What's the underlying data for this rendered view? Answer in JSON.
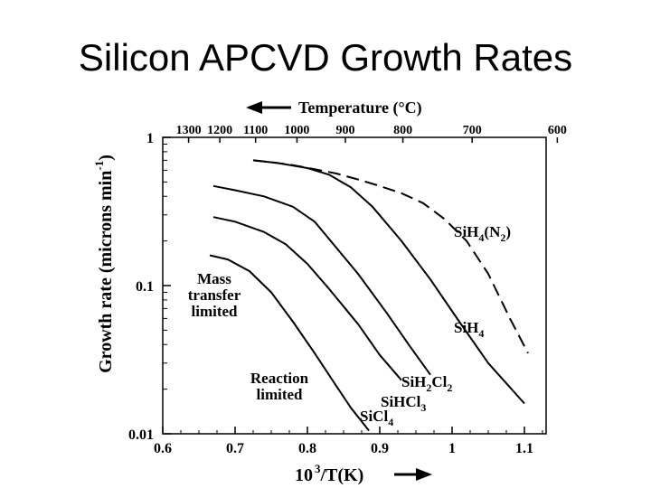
{
  "slide": {
    "title": "Silicon APCVD Growth Rates"
  },
  "chart_data": {
    "type": "line",
    "x_axis": {
      "label_base": "10",
      "label_exp": "3",
      "label_rest": "/T(K)",
      "range": [
        0.6,
        1.13
      ],
      "ticks": [
        0.6,
        0.7,
        0.8,
        0.9,
        1,
        1.1
      ],
      "tick_labels": [
        "0.6",
        "0.7",
        "0.8",
        "0.9",
        "1",
        "1.1"
      ]
    },
    "y_axis": {
      "label_main": "Growth rate (microns min",
      "label_exp": "-1",
      "label_close": ")",
      "scale": "log",
      "range": [
        0.01,
        1
      ],
      "ticks": [
        0.01,
        0.1,
        1
      ],
      "tick_labels": [
        "0.01",
        "0.1",
        "1"
      ]
    },
    "top_axis": {
      "label": "Temperature (°C)",
      "arrow": "left",
      "ticks_c": [
        1300,
        1200,
        1100,
        1000,
        900,
        800,
        700,
        600
      ],
      "tick_labels": [
        "1300",
        "1200",
        "1100",
        "1000",
        "900",
        "800",
        "700",
        "600"
      ]
    },
    "series": [
      {
        "name": "SiH4(N2)",
        "name_parts": [
          "SiH",
          "4",
          "(N",
          "2",
          ")"
        ],
        "dashed": true,
        "x": [
          0.725,
          0.75,
          0.78,
          0.81,
          0.84,
          0.87,
          0.9,
          0.93,
          0.96,
          0.99,
          1.02,
          1.05,
          1.08,
          1.105
        ],
        "y": [
          0.7,
          0.68,
          0.65,
          0.61,
          0.57,
          0.52,
          0.47,
          0.42,
          0.36,
          0.28,
          0.2,
          0.12,
          0.06,
          0.035
        ]
      },
      {
        "name": "SiH4",
        "name_parts": [
          "SiH",
          "4"
        ],
        "dashed": false,
        "x": [
          0.725,
          0.76,
          0.8,
          0.83,
          0.86,
          0.89,
          0.93,
          0.97,
          1.01,
          1.05,
          1.1
        ],
        "y": [
          0.7,
          0.67,
          0.62,
          0.56,
          0.46,
          0.34,
          0.2,
          0.11,
          0.057,
          0.03,
          0.016
        ]
      },
      {
        "name": "SiH2Cl2",
        "name_parts": [
          "SiH",
          "2",
          "Cl",
          "2"
        ],
        "dashed": false,
        "x": [
          0.67,
          0.7,
          0.74,
          0.78,
          0.81,
          0.84,
          0.87,
          0.91,
          0.94,
          0.97
        ],
        "y": [
          0.47,
          0.44,
          0.4,
          0.34,
          0.27,
          0.18,
          0.12,
          0.065,
          0.04,
          0.025
        ]
      },
      {
        "name": "SiHCl3",
        "name_parts": [
          "SiHCl",
          "3"
        ],
        "dashed": false,
        "x": [
          0.67,
          0.7,
          0.74,
          0.77,
          0.8,
          0.83,
          0.87,
          0.9,
          0.93
        ],
        "y": [
          0.29,
          0.27,
          0.23,
          0.19,
          0.14,
          0.095,
          0.055,
          0.034,
          0.023
        ]
      },
      {
        "name": "SiCl4",
        "name_parts": [
          "SiCl",
          "4"
        ],
        "dashed": false,
        "x": [
          0.665,
          0.69,
          0.72,
          0.75,
          0.78,
          0.81,
          0.84,
          0.86,
          0.885
        ],
        "y": [
          0.16,
          0.15,
          0.125,
          0.09,
          0.057,
          0.035,
          0.021,
          0.015,
          0.0105
        ]
      }
    ],
    "annotations": [
      {
        "lines": [
          "Mass",
          "transfer",
          "limited"
        ]
      },
      {
        "lines": [
          "Reaction",
          "limited"
        ]
      }
    ]
  }
}
